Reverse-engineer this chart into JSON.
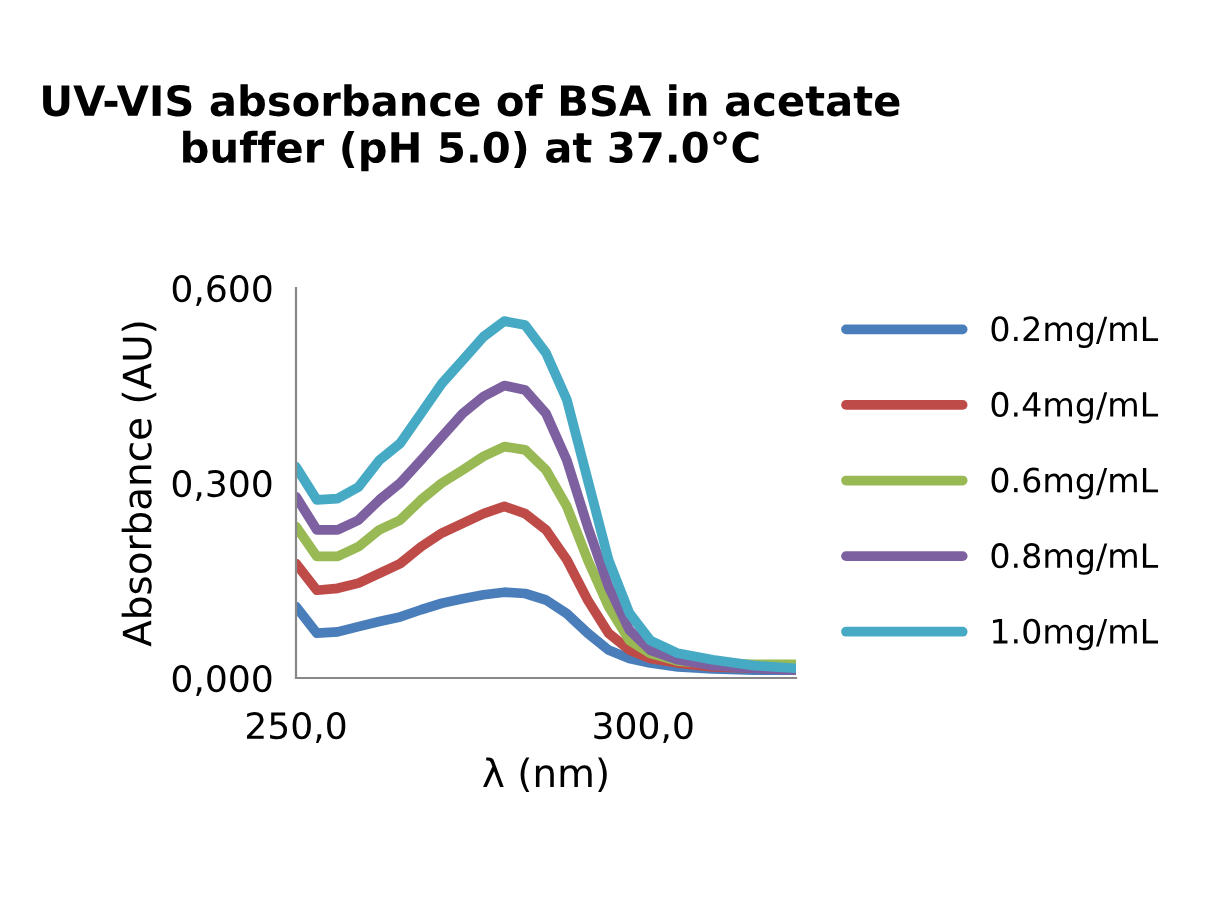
{
  "chart_data": {
    "type": "line",
    "title": "UV-VIS absorbance of BSA in acetate buffer (pH 5.0) at 37.0°C",
    "xlabel": "λ (nm)",
    "ylabel": "Absorbance (AU)",
    "x": [
      250,
      253,
      256,
      259,
      262,
      265,
      268,
      271,
      274,
      277,
      280,
      283,
      286,
      289,
      292,
      295,
      298,
      301,
      305,
      310,
      316,
      322
    ],
    "series": [
      {
        "name": "0.2mg/mL",
        "color": "#4a7ebb",
        "values": [
          0.11,
          0.069,
          0.071,
          0.079,
          0.087,
          0.094,
          0.105,
          0.115,
          0.122,
          0.128,
          0.132,
          0.13,
          0.12,
          0.099,
          0.069,
          0.043,
          0.03,
          0.023,
          0.017,
          0.014,
          0.012,
          0.012
        ]
      },
      {
        "name": "0.4mg/mL",
        "color": "#be4b48",
        "values": [
          0.176,
          0.135,
          0.138,
          0.146,
          0.161,
          0.176,
          0.202,
          0.223,
          0.238,
          0.253,
          0.264,
          0.253,
          0.228,
          0.182,
          0.12,
          0.069,
          0.043,
          0.03,
          0.023,
          0.017,
          0.015,
          0.014
        ]
      },
      {
        "name": "0.6mg/mL",
        "color": "#98b954",
        "values": [
          0.233,
          0.187,
          0.187,
          0.202,
          0.228,
          0.243,
          0.274,
          0.3,
          0.32,
          0.341,
          0.356,
          0.351,
          0.32,
          0.264,
          0.182,
          0.11,
          0.058,
          0.038,
          0.026,
          0.022,
          0.021,
          0.021
        ]
      },
      {
        "name": "0.8mg/mL",
        "color": "#7d60a0",
        "values": [
          0.279,
          0.228,
          0.228,
          0.243,
          0.274,
          0.3,
          0.335,
          0.371,
          0.407,
          0.433,
          0.45,
          0.443,
          0.407,
          0.335,
          0.233,
          0.141,
          0.074,
          0.043,
          0.028,
          0.019,
          0.015,
          0.012
        ]
      },
      {
        "name": "1.0mg/mL",
        "color": "#46aac5",
        "values": [
          0.325,
          0.274,
          0.276,
          0.294,
          0.335,
          0.361,
          0.407,
          0.453,
          0.489,
          0.525,
          0.549,
          0.543,
          0.5,
          0.428,
          0.305,
          0.182,
          0.1,
          0.058,
          0.038,
          0.028,
          0.019,
          0.015
        ]
      }
    ],
    "xlim": [
      250,
      322
    ],
    "xticks": [
      {
        "value": 250,
        "label": "250,0"
      },
      {
        "value": 300,
        "label": "300,0"
      }
    ],
    "ylim": [
      0,
      0.6
    ],
    "yticks": [
      {
        "value": 0,
        "label": "0,000"
      },
      {
        "value": 0.3,
        "label": "0,300"
      },
      {
        "value": 0.6,
        "label": "0,600"
      }
    ],
    "grid": false,
    "legend": "right",
    "marker": "none",
    "line_style": "solid"
  }
}
